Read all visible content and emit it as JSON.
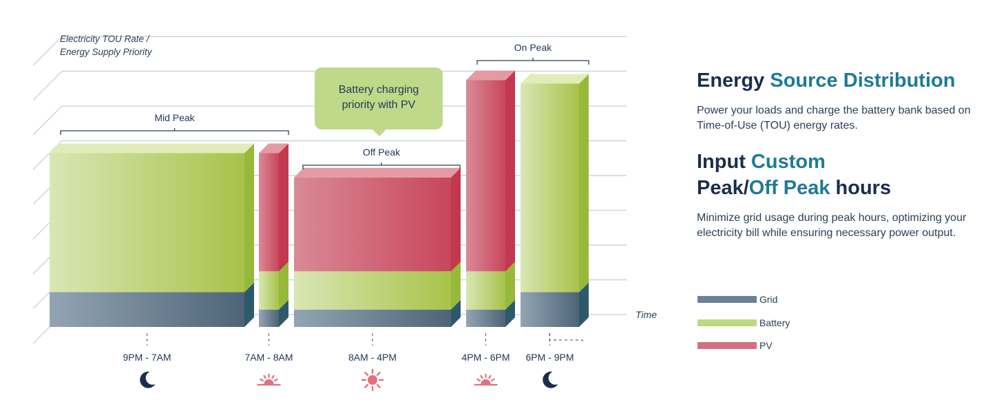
{
  "chart_data": {
    "type": "bar",
    "stacked": true,
    "ylabel": [
      "Electricity TOU Rate /",
      "Energy Supply Priority"
    ],
    "xlabel": "Time",
    "ylim": [
      0,
      8
    ],
    "grid": true,
    "colors": {
      "Grid": "#6b8196",
      "Battery": "#bcd97f",
      "PV": "#d4707f"
    },
    "categories": [
      "9PM - 7AM",
      "7AM - 8AM",
      "8AM - 4PM",
      "4PM - 6PM",
      "6PM - 9PM"
    ],
    "category_icons": [
      "moon-icon",
      "sunrise-icon",
      "sun-icon",
      "sunrise-icon",
      "moon-icon"
    ],
    "series": [
      {
        "name": "Grid",
        "values": [
          1.0,
          0.5,
          0.5,
          0.5,
          1.0
        ]
      },
      {
        "name": "Battery",
        "values": [
          4.0,
          1.1,
          1.1,
          1.1,
          6.0
        ]
      },
      {
        "name": "PV",
        "values": [
          0.0,
          3.4,
          2.7,
          5.5,
          0.0
        ]
      }
    ],
    "rate_periods": [
      {
        "label": "Mid Peak",
        "categories": [
          "9PM - 7AM",
          "7AM - 8AM"
        ]
      },
      {
        "label": "Off Peak",
        "categories": [
          "8AM - 4PM"
        ]
      },
      {
        "label": "On Peak",
        "categories": [
          "4PM - 6PM",
          "6PM - 9PM"
        ]
      }
    ],
    "annotations": [
      {
        "text": [
          "Battery charging",
          "priority with PV"
        ],
        "target": "8AM - 4PM"
      }
    ]
  },
  "panel": {
    "title1_a": "Energy ",
    "title1_b": "Source Distribution",
    "para1": "Power your loads and charge the battery bank based on Time-of-Use (TOU) energy rates.",
    "title2_line1_a": "Input ",
    "title2_line1_b": "Custom",
    "title2_line2_a": "Peak/",
    "title2_line2_b": "Off Peak",
    "title2_line2_c": " hours",
    "para2": "Minimize grid usage during peak hours, optimizing your electricity bill while ensuring necessary power output."
  },
  "legend": [
    {
      "label": "Grid",
      "color": "#6b8196"
    },
    {
      "label": "Battery",
      "color": "#bcd97f"
    },
    {
      "label": "PV",
      "color": "#d4707f"
    }
  ]
}
